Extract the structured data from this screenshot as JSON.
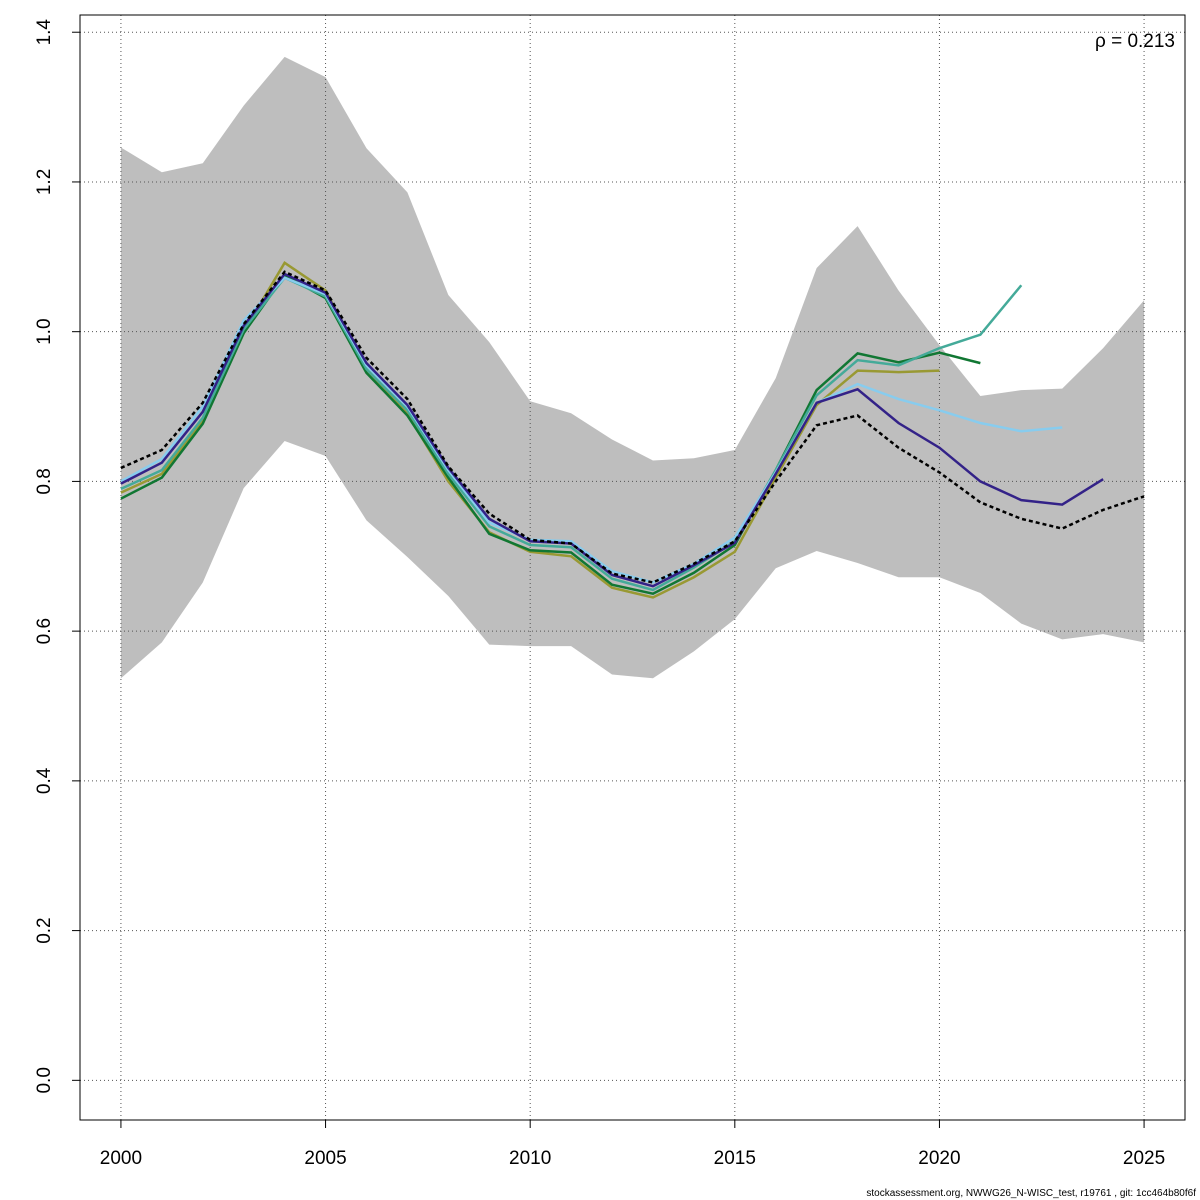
{
  "chart_data": {
    "type": "line",
    "annotation": "ρ = 0.213",
    "footer": "stockassessment.org, NWWG26_N-WISC_test, r19761 , git: 1cc464b80f6f",
    "x": [
      2000,
      2001,
      2002,
      2003,
      2004,
      2005,
      2006,
      2007,
      2008,
      2009,
      2010,
      2011,
      2012,
      2013,
      2014,
      2015,
      2016,
      2017,
      2018,
      2019,
      2020,
      2021,
      2022,
      2023,
      2024,
      2025
    ],
    "band": {
      "color": "#bebebe",
      "upper": [
        1.246,
        1.213,
        1.225,
        1.302,
        1.367,
        1.34,
        1.245,
        1.186,
        1.049,
        0.986,
        0.907,
        0.891,
        0.856,
        0.828,
        0.831,
        0.842,
        0.938,
        1.085,
        1.141,
        1.055,
        0.982,
        0.914,
        0.922,
        0.924,
        0.978,
        1.042
      ],
      "lower": [
        0.537,
        0.585,
        0.665,
        0.791,
        0.854,
        0.834,
        0.748,
        0.699,
        0.647,
        0.582,
        0.58,
        0.58,
        0.542,
        0.537,
        0.573,
        0.616,
        0.684,
        0.707,
        0.691,
        0.672,
        0.672,
        0.651,
        0.61,
        0.589,
        0.596,
        0.585
      ]
    },
    "series": [
      {
        "color": "#999933",
        "values": [
          0.785,
          0.81,
          0.88,
          1.0,
          1.092,
          1.055,
          0.95,
          0.89,
          0.8,
          0.732,
          0.706,
          0.7,
          0.658,
          0.645,
          0.672,
          0.706,
          0.805,
          0.902,
          0.948,
          0.946,
          0.948,
          null,
          null,
          null,
          null,
          null
        ]
      },
      {
        "color": "#117733",
        "values": [
          0.777,
          0.805,
          0.877,
          0.998,
          1.075,
          1.045,
          0.945,
          0.888,
          0.805,
          0.73,
          0.708,
          0.705,
          0.662,
          0.65,
          0.678,
          0.715,
          0.815,
          0.922,
          0.971,
          0.959,
          0.972,
          0.958,
          null,
          null,
          null,
          null
        ]
      },
      {
        "color": "#44aa99",
        "values": [
          0.79,
          0.815,
          0.885,
          1.003,
          1.072,
          1.047,
          0.95,
          0.895,
          0.81,
          0.74,
          0.715,
          0.712,
          0.67,
          0.655,
          0.685,
          0.72,
          0.815,
          0.915,
          0.962,
          0.955,
          0.978,
          0.996,
          1.062,
          null,
          null,
          null
        ]
      },
      {
        "color": "#88ccee",
        "values": [
          0.8,
          0.83,
          0.9,
          1.015,
          1.072,
          1.05,
          0.955,
          0.9,
          0.815,
          0.745,
          0.722,
          0.72,
          0.68,
          0.665,
          0.69,
          0.725,
          0.812,
          0.905,
          0.93,
          0.91,
          0.895,
          0.878,
          0.867,
          0.872,
          null,
          null
        ]
      },
      {
        "color": "#332288",
        "values": [
          0.797,
          0.825,
          0.893,
          1.008,
          1.077,
          1.052,
          0.958,
          0.902,
          0.818,
          0.75,
          0.72,
          0.717,
          0.675,
          0.66,
          0.688,
          0.718,
          0.81,
          0.905,
          0.923,
          0.878,
          0.845,
          0.8,
          0.775,
          0.769,
          0.803,
          null
        ]
      },
      {
        "color": "#000000",
        "dashed": true,
        "values": [
          0.818,
          0.842,
          0.905,
          1.01,
          1.08,
          1.055,
          0.965,
          0.91,
          0.82,
          0.757,
          0.722,
          0.717,
          0.677,
          0.665,
          0.69,
          0.72,
          0.8,
          0.875,
          0.888,
          0.845,
          0.812,
          0.772,
          0.75,
          0.737,
          0.762,
          0.78
        ]
      }
    ],
    "xlim": [
      1999,
      2026
    ],
    "ylim": [
      -0.053,
      1.423
    ],
    "xticks": [
      2000,
      2005,
      2010,
      2015,
      2020,
      2025
    ],
    "yticks": [
      {
        "value": 0,
        "label": "0.0"
      },
      0.2,
      0.4,
      0.6,
      0.8,
      {
        "value": 1,
        "label": "1.0"
      },
      1.2,
      1.4
    ],
    "grid": true
  }
}
